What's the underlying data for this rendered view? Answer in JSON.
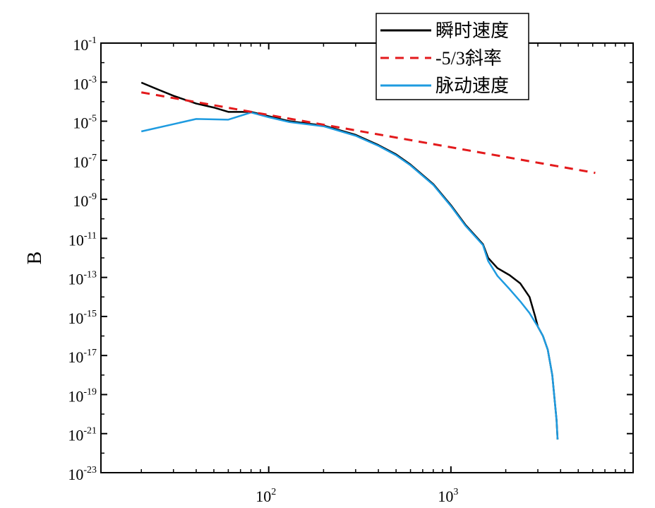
{
  "chart_data": {
    "type": "line",
    "title": "",
    "xlabel": "",
    "ylabel": "B",
    "x_scale": "log",
    "y_scale": "log",
    "xlim": [
      12,
      10000
    ],
    "ylim": [
      1e-23,
      0.1
    ],
    "grid": false,
    "legend_position": "top-right",
    "x_ticks": [
      {
        "base": "10",
        "exp": "2",
        "value": 100
      },
      {
        "base": "10",
        "exp": "3",
        "value": 1000
      }
    ],
    "y_ticks": [
      {
        "base": "10",
        "exp": "-1",
        "value": 0.1
      },
      {
        "base": "10",
        "exp": "-3",
        "value": 0.001
      },
      {
        "base": "10",
        "exp": "-5",
        "value": 1e-05
      },
      {
        "base": "10",
        "exp": "-7",
        "value": 1e-07
      },
      {
        "base": "10",
        "exp": "-9",
        "value": 1e-09
      },
      {
        "base": "10",
        "exp": "-11",
        "value": 1e-11
      },
      {
        "base": "10",
        "exp": "-13",
        "value": 1e-13
      },
      {
        "base": "10",
        "exp": "-15",
        "value": 1e-15
      },
      {
        "base": "10",
        "exp": "-17",
        "value": 1e-17
      },
      {
        "base": "10",
        "exp": "-19",
        "value": 1e-19
      },
      {
        "base": "10",
        "exp": "-21",
        "value": 1e-21
      },
      {
        "base": "10",
        "exp": "-23",
        "value": 1e-23
      }
    ],
    "series": [
      {
        "name": "瞬时速度",
        "color": "#000000",
        "dash": "solid",
        "points": [
          [
            20,
            0.00095
          ],
          [
            25,
            0.0004
          ],
          [
            30,
            0.0002
          ],
          [
            40,
            8e-05
          ],
          [
            50,
            5e-05
          ],
          [
            60,
            3e-05
          ],
          [
            80,
            3e-05
          ],
          [
            100,
            1.8e-05
          ],
          [
            130,
            1e-05
          ],
          [
            200,
            6e-06
          ],
          [
            300,
            2e-06
          ],
          [
            400,
            6e-07
          ],
          [
            500,
            2e-07
          ],
          [
            600,
            6e-08
          ],
          [
            800,
            6e-09
          ],
          [
            1000,
            5e-10
          ],
          [
            1200,
            5e-11
          ],
          [
            1500,
            5e-12
          ],
          [
            1600,
            1e-12
          ],
          [
            1800,
            3e-13
          ],
          [
            2100,
            1.3e-13
          ],
          [
            2400,
            5e-14
          ],
          [
            2700,
            1e-14
          ],
          [
            2900,
            1e-15
          ],
          [
            3000,
            3e-16
          ],
          [
            3200,
            1e-16
          ],
          [
            3400,
            2e-17
          ],
          [
            3600,
            1e-18
          ],
          [
            3800,
            5e-21
          ],
          [
            3850,
            5e-22
          ]
        ]
      },
      {
        "name": "-5/3斜率",
        "color": "#e31a1c",
        "dash": "dashed",
        "points": [
          [
            20,
            0.0003
          ],
          [
            6200,
            2.25e-08
          ]
        ]
      },
      {
        "name": "脉动速度",
        "color": "#1e9be0",
        "dash": "solid",
        "points": [
          [
            20,
            3e-06
          ],
          [
            40,
            1.3e-05
          ],
          [
            60,
            1.2e-05
          ],
          [
            80,
            2.8e-05
          ],
          [
            100,
            1.6e-05
          ],
          [
            130,
            9e-06
          ],
          [
            200,
            5.5e-06
          ],
          [
            300,
            1.8e-06
          ],
          [
            400,
            5.5e-07
          ],
          [
            500,
            1.8e-07
          ],
          [
            600,
            5.5e-08
          ],
          [
            800,
            5.5e-09
          ],
          [
            1000,
            4.5e-10
          ],
          [
            1200,
            4.5e-11
          ],
          [
            1500,
            4.5e-12
          ],
          [
            1600,
            7e-13
          ],
          [
            1800,
            1.2e-13
          ],
          [
            2100,
            2.5e-14
          ],
          [
            2400,
            6e-15
          ],
          [
            2700,
            1.5e-15
          ],
          [
            2900,
            5e-16
          ],
          [
            3000,
            3e-16
          ],
          [
            3200,
            1e-16
          ],
          [
            3400,
            2e-17
          ],
          [
            3600,
            1e-18
          ],
          [
            3800,
            5e-21
          ],
          [
            3850,
            5e-22
          ]
        ]
      }
    ]
  }
}
